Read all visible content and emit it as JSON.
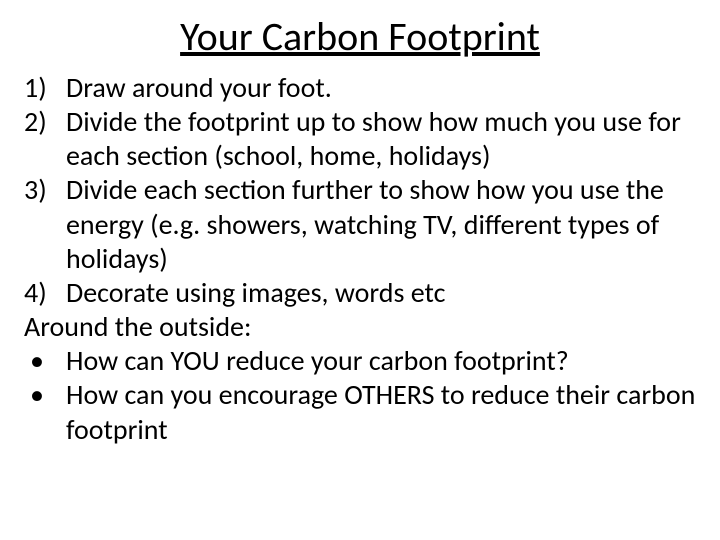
{
  "title": "Your Carbon Footprint",
  "numbered": [
    "Draw around your foot.",
    "Divide the footprint up to show how much you use for each section (school, home, holidays)",
    "Divide each section further to show how you use the energy (e.g. showers, watching TV, different types of holidays)",
    "Decorate using images, words etc"
  ],
  "subheading": "Around the outside:",
  "bullets": [
    "How can YOU reduce your carbon footprint?",
    "How can you encourage OTHERS to reduce their carbon footprint"
  ],
  "colors": {
    "background": "#ffffff",
    "text": "#000000"
  },
  "typography": {
    "title_fontsize": 40,
    "body_fontsize": 28,
    "font_family": "Calibri"
  }
}
